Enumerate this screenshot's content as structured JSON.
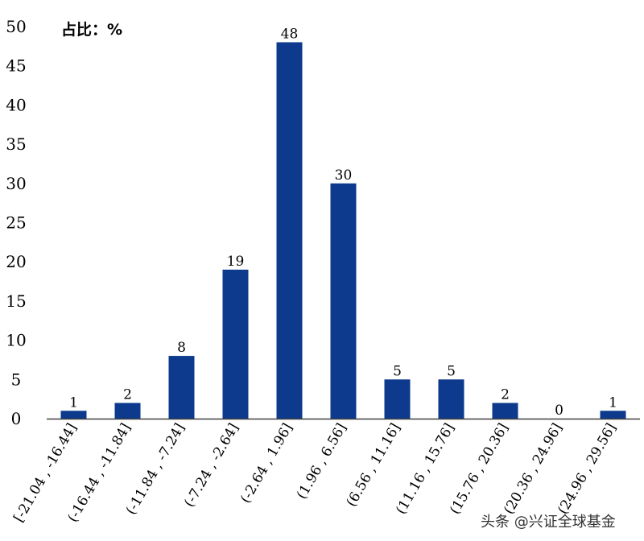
{
  "chart_data": {
    "type": "bar",
    "unit_label": "占比：%",
    "categories": [
      "[-21.04 , -16.44]",
      "(-16.44 , -11.84]",
      "(-11.84 , -7.24]",
      "(-7.24 , -2.64]",
      "(-2.64 , 1.96]",
      "(1.96 , 6.56]",
      "(6.56 , 11.16]",
      "(11.16 , 15.76]",
      "(15.76 , 20.36]",
      "(20.36 , 24.96]",
      "(24.96 , 29.56]"
    ],
    "values": [
      1,
      2,
      8,
      19,
      48,
      30,
      5,
      5,
      2,
      0,
      1
    ],
    "ylim": [
      0,
      50
    ],
    "yticks": [
      0,
      5,
      10,
      15,
      20,
      25,
      30,
      35,
      40,
      45,
      50
    ],
    "grid": false,
    "colors": {
      "bar": "#0D3A8C",
      "axis": "#404040",
      "text": "#000000"
    }
  },
  "watermark": "头条 @兴证全球基金"
}
